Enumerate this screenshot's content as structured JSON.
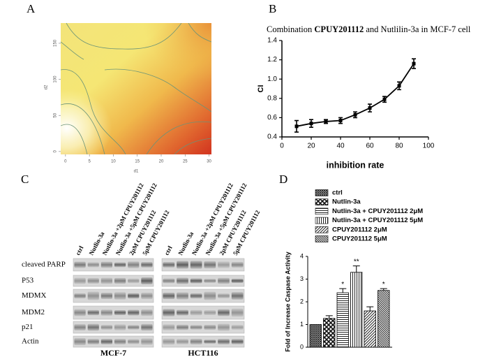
{
  "panels": [
    "A",
    "B",
    "C",
    "D"
  ],
  "chart_data": [
    {
      "type": "contour",
      "xlabel": "d1",
      "ylabel": "d2",
      "xlim": [
        -1,
        30.5
      ],
      "xticks": [
        0,
        5,
        10,
        15,
        20,
        25,
        30
      ],
      "ylim": [
        -4,
        178
      ],
      "yticks": [
        0,
        50,
        100,
        150
      ]
    },
    {
      "type": "line",
      "title": [
        "Combination",
        "CPUY201112",
        "and Nutlilin-3a in MCF-7 cell"
      ],
      "xlabel": "inhibition rate",
      "ylabel": "CI",
      "color": "#000000",
      "x": [
        10,
        20,
        30,
        40,
        50,
        60,
        70,
        80,
        90
      ],
      "values": [
        0.51,
        0.54,
        0.56,
        0.57,
        0.63,
        0.7,
        0.79,
        0.93,
        1.16
      ],
      "errors": [
        0.06,
        0.04,
        0.02,
        0.03,
        0.03,
        0.04,
        0.03,
        0.04,
        0.05
      ],
      "xlim": [
        0,
        100
      ],
      "xticks": [
        0,
        20,
        40,
        60,
        80,
        100
      ],
      "ylim": [
        0.4,
        1.4
      ],
      "yticks": [
        0.4,
        0.6,
        0.8,
        {
          "value": 1,
          "label": "1.0"
        },
        1.2,
        1.4
      ]
    },
    {
      "type": "bar",
      "ylabel": "Fold of Increase Caspase Activity",
      "ylim": [
        0,
        4
      ],
      "yticks": [
        0,
        1,
        2,
        3,
        4
      ],
      "series": [
        {
          "name": "ctrl",
          "pattern": "dense-cross",
          "values": [
            1.0
          ],
          "errors": [
            0
          ]
        },
        {
          "name": "Nutlin-3a",
          "pattern": "cross",
          "values": [
            1.27
          ],
          "errors": [
            0.12
          ]
        },
        {
          "name": "Nutlin-3a + CPUY201112 2μM",
          "pattern": "horizontal",
          "values": [
            2.4
          ],
          "errors": [
            0.18
          ],
          "annotation": "*"
        },
        {
          "name": "Nutlin-3a + CPUY201112 5μM",
          "pattern": "vertical",
          "values": [
            3.3
          ],
          "errors": [
            0.28
          ],
          "annotation": "**"
        },
        {
          "name": "CPUY201112  2μM",
          "pattern": "diagonal",
          "values": [
            1.6
          ],
          "errors": [
            0.18
          ]
        },
        {
          "name": "CPUY201112  5μM",
          "pattern": "diagonal-dense",
          "values": [
            2.5
          ],
          "errors": [
            0.08
          ],
          "annotation": "*"
        }
      ]
    }
  ],
  "blot": {
    "rows": [
      "cleaved PARP",
      "P53",
      "MDMX",
      "MDM2",
      "p21",
      "Actin"
    ],
    "lanes": [
      "ctrl",
      "Nutlin-3a",
      "Nutlin-3a +2μM CPUY201112",
      "Nutlin-3a +5μM CPUY201112",
      "2μM CPUY201112",
      "5μM CPUY201112"
    ],
    "cell_lines": [
      "MCF-7",
      "HCT116"
    ]
  }
}
